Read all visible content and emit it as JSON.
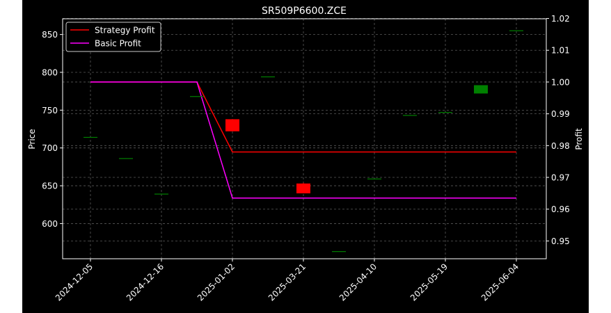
{
  "chart_data": {
    "type": "candlestick",
    "title": "SR509P6600.ZCE",
    "ylabel": "Price",
    "y2label": "Profit",
    "xticks": [
      "2024-12-05",
      "2024-12-16",
      "2025-01-02",
      "2025-03-21",
      "2025-04-10",
      "2025-05-19",
      "2025-06-04"
    ],
    "yticks": [
      600,
      650,
      700,
      750,
      800,
      850
    ],
    "y2ticks": [
      0.95,
      0.96,
      0.97,
      0.98,
      0.99,
      1.0,
      1.01,
      1.02
    ],
    "y2tick_labels": [
      "0.95",
      "0.96",
      "0.97",
      "0.98",
      "0.99",
      "1.00",
      "1.01",
      "1.02"
    ],
    "ylim": [
      553.5,
      870.8
    ],
    "y2lim": [
      0.9444,
      1.0199
    ],
    "grid": true,
    "legend_placement": "top-left",
    "colors": {
      "background": "#000000",
      "figure_background": "#ffffff",
      "text": "#ffffff",
      "grid": "#5a5a5a",
      "up": "#008000",
      "down": "#ff0000",
      "strategy": "#ff0000",
      "basic": "#ff00ff"
    },
    "candles": [
      {
        "x": 0,
        "open": 714,
        "close": 714,
        "high": 714,
        "low": 714
      },
      {
        "x": 1,
        "open": 686,
        "close": 686,
        "high": 686,
        "low": 686
      },
      {
        "x": 2,
        "open": 639,
        "close": 639,
        "high": 639,
        "low": 639
      },
      {
        "x": 3,
        "open": 768,
        "close": 768,
        "high": 768,
        "low": 768
      },
      {
        "x": 4,
        "open": 738,
        "close": 722,
        "high": 738,
        "low": 722
      },
      {
        "x": 5,
        "open": 794,
        "close": 794,
        "high": 794,
        "low": 794
      },
      {
        "x": 6,
        "open": 653,
        "close": 640,
        "high": 654,
        "low": 640
      },
      {
        "x": 7,
        "open": 563,
        "close": 563,
        "high": 563,
        "low": 563
      },
      {
        "x": 8,
        "open": 659,
        "close": 659,
        "high": 659,
        "low": 659
      },
      {
        "x": 9,
        "open": 743,
        "close": 743,
        "high": 743,
        "low": 743
      },
      {
        "x": 10,
        "open": 747,
        "close": 747,
        "high": 747,
        "low": 747
      },
      {
        "x": 11,
        "open": 772,
        "close": 783,
        "high": 783,
        "low": 772
      },
      {
        "x": 12,
        "open": 855,
        "close": 855,
        "high": 855,
        "low": 855
      }
    ],
    "series": [
      {
        "name": "Strategy Profit",
        "color": "#ff0000",
        "points": [
          [
            0,
            1.0
          ],
          [
            3,
            1.0
          ],
          [
            4,
            0.978
          ],
          [
            12,
            0.978
          ]
        ]
      },
      {
        "name": "Basic Profit",
        "color": "#ff00ff",
        "points": [
          [
            0,
            1.0
          ],
          [
            3,
            1.0
          ],
          [
            4,
            0.9635
          ],
          [
            12,
            0.9635
          ]
        ]
      }
    ]
  }
}
